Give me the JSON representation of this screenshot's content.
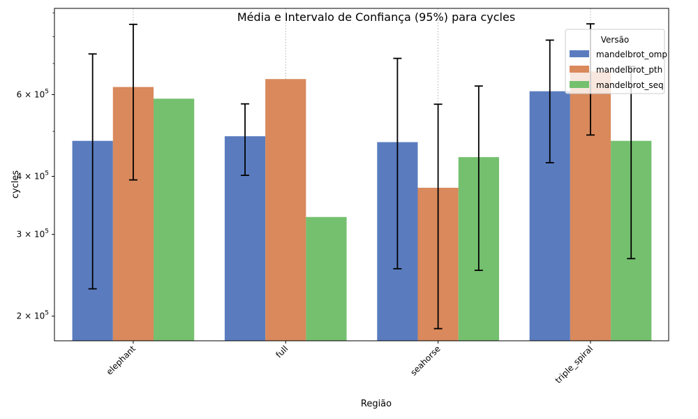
{
  "chart_data": {
    "type": "bar",
    "title": "Média e Intervalo de Confiança (95%) para cycles",
    "xlabel": "Região",
    "ylabel": "cycles",
    "yscale": "log",
    "ylim": [
      177000,
      920000
    ],
    "grid": "x-only-dashed",
    "categories": [
      "elephant",
      "full",
      "seahorse",
      "triple_spiral"
    ],
    "y_ticks": [
      {
        "value": 200000,
        "mantissa": "2",
        "times": "×",
        "base": "10",
        "exp": "5"
      },
      {
        "value": 300000,
        "mantissa": "3",
        "times": "×",
        "base": "10",
        "exp": "5"
      },
      {
        "value": 400000,
        "mantissa": "4",
        "times": "×",
        "base": "10",
        "exp": "5"
      },
      {
        "value": 600000,
        "mantissa": "6",
        "times": "×",
        "base": "10",
        "exp": "5"
      }
    ],
    "y_minor_ticks": [
      500000,
      700000,
      800000,
      900000
    ],
    "legend": {
      "title": "Versão",
      "position": "top-right"
    },
    "series": [
      {
        "name": "mandelbrot_omp",
        "color": "#5a7cbf",
        "values": [
          477000,
          488000,
          474000,
          610000
        ],
        "ci_low": [
          229000,
          402000,
          253000,
          428000
        ],
        "ci_high": [
          734000,
          573000,
          718000,
          786000
        ]
      },
      {
        "name": "mandelbrot_pth",
        "color": "#d9895b",
        "values": [
          623000,
          648000,
          378000,
          673000
        ],
        "ci_low": [
          393000,
          null,
          188000,
          491000
        ],
        "ci_high": [
          850000,
          null,
          572000,
          852000
        ]
      },
      {
        "name": "mandelbrot_seq",
        "color": "#75c06f",
        "values": [
          588000,
          327000,
          440000,
          477000
        ],
        "ci_low": [
          null,
          null,
          251000,
          266000
        ],
        "ci_high": [
          null,
          null,
          626000,
          690000
        ]
      }
    ]
  }
}
